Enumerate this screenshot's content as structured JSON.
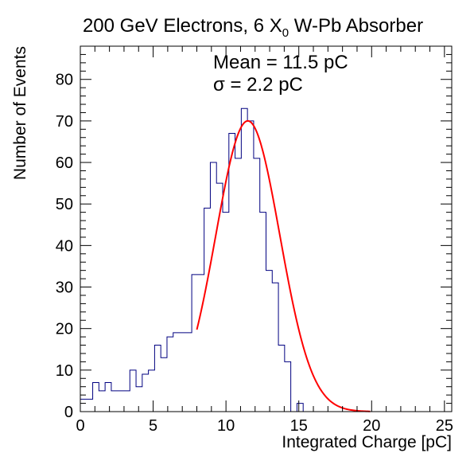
{
  "chart_data": {
    "type": "histogram",
    "title": "200 GeV Electrons, 6 X",
    "title_sub": "0",
    "title_rest": " W-Pb Absorber",
    "xlabel": "Integrated Charge [pC]",
    "ylabel": "Number of Events",
    "xlim": [
      0,
      25.5
    ],
    "ylim": [
      0,
      88
    ],
    "x_ticks": [
      0,
      5,
      10,
      15,
      20,
      25
    ],
    "y_ticks": [
      0,
      10,
      20,
      30,
      40,
      50,
      60,
      70,
      80
    ],
    "annotations": [
      "Mean = 11.5 pC",
      "σ = 2.2 pC"
    ],
    "histogram": {
      "color": "#000080",
      "bin_width": 0.425,
      "bin_edges_start": 0,
      "counts": [
        3,
        3,
        7,
        5,
        7,
        5,
        5,
        5,
        10,
        6,
        9,
        10,
        16,
        13,
        18,
        19,
        19,
        19,
        33,
        33,
        49,
        60,
        55,
        48,
        67,
        61,
        73,
        70,
        61,
        48,
        34,
        31,
        16,
        12,
        0,
        2,
        0,
        0,
        0,
        0,
        0,
        0,
        0,
        0,
        0,
        0,
        0,
        0,
        0,
        0,
        0,
        0,
        0,
        0,
        0,
        0,
        0,
        0,
        0,
        0
      ]
    },
    "fit": {
      "type": "gaussian",
      "color": "#ff0000",
      "mean": 11.5,
      "sigma": 2.2,
      "amplitude": 70,
      "x_range": [
        8,
        19.9
      ]
    }
  }
}
